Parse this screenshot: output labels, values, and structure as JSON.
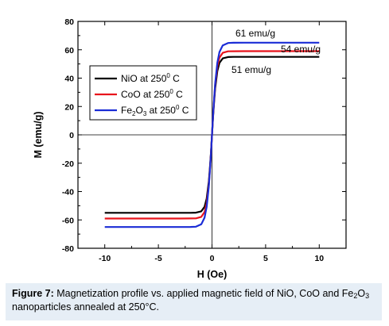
{
  "chart_data": {
    "type": "line",
    "title": "",
    "xlabel": "H (Oe)",
    "ylabel": "M (emu/g)",
    "xlim": [
      -12.5,
      12.5
    ],
    "ylim": [
      -80,
      80
    ],
    "xticks": [
      -10,
      -5,
      0,
      5,
      10
    ],
    "yticks": [
      -80,
      -60,
      -40,
      -20,
      0,
      20,
      40,
      60,
      80
    ],
    "grid": false,
    "zero_lines": true,
    "legend_position": "upper-left",
    "series": [
      {
        "name": "NiO at 250° C",
        "name_parts": [
          "NiO at 250",
          "0",
          " C"
        ],
        "color": "#000000",
        "ms": 55,
        "k": 2.3
      },
      {
        "name": "CoO at 250° C",
        "name_parts": [
          "CoO at 250",
          "0",
          " C"
        ],
        "color": "#e8141c",
        "ms": 59,
        "k": 2.3
      },
      {
        "name": "Fe2O3 at 250° C",
        "name_parts": [
          "Fe",
          "2",
          "O",
          "3",
          " at 250",
          "0",
          " C"
        ],
        "color": "#1a2cd6",
        "ms": 65,
        "k": 2.1
      }
    ],
    "x": [
      -10,
      -8,
      -6,
      -4,
      -3,
      -2,
      -1.5,
      -1,
      -0.7,
      -0.5,
      -0.3,
      -0.2,
      -0.1,
      0,
      0.1,
      0.2,
      0.3,
      0.5,
      0.7,
      1,
      1.5,
      2,
      3,
      4,
      6,
      8,
      10
    ],
    "annotations": [
      {
        "text": "61 emu/g"
      },
      {
        "text": "54 emu/g"
      },
      {
        "text": "51 emu/g"
      }
    ]
  },
  "caption": {
    "label": "Figure 7:",
    "text_before": " Magnetization profile vs. applied magnetic field of NiO, CoO and Fe",
    "sub1": "2",
    "mid": "O",
    "sub2": "3",
    "text_after": " nanoparticles annealed at 250°C."
  }
}
